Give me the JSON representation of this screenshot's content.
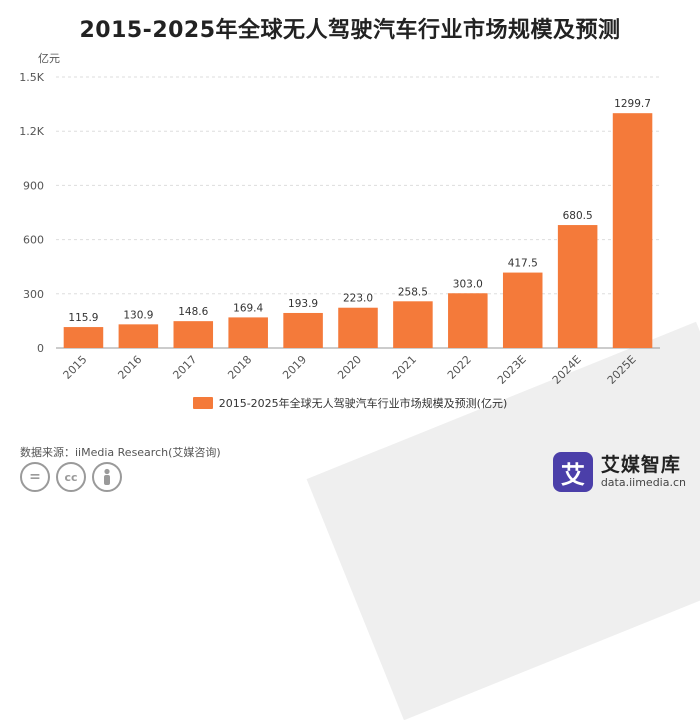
{
  "header": {
    "title": "2015-2025年全球无人驾驶汽车行业市场规模及预测"
  },
  "chart_data": {
    "type": "bar",
    "title": "2015-2025年全球无人驾驶汽车行业市场规模及预测",
    "unit_label": "亿元",
    "categories": [
      "2015",
      "2016",
      "2017",
      "2018",
      "2019",
      "2020",
      "2021",
      "2022",
      "2023E",
      "2024E",
      "2025E"
    ],
    "series": [
      {
        "name": "2015-2025年全球无人驾驶汽车行业市场规模及预测(亿元)",
        "values": [
          115.9,
          130.9,
          148.6,
          169.4,
          193.9,
          223.0,
          258.5,
          303.0,
          417.5,
          680.5,
          1299.7
        ],
        "value_labels": [
          "115.9",
          "130.9",
          "148.6",
          "169.4",
          "193.9",
          "223.0",
          "258.5",
          "303.0",
          "417.5",
          "680.5",
          "1299.7"
        ]
      }
    ],
    "y_ticks": [
      0,
      300,
      600,
      900,
      1200,
      1500
    ],
    "y_tick_labels": [
      "0",
      "300",
      "600",
      "900",
      "1.2K",
      "1.5K"
    ],
    "ylim": [
      0,
      1500
    ],
    "grid": true,
    "legend_position": "bottom",
    "bar_color": "#f47a3a"
  },
  "footer": {
    "source": "数据来源：iiMedia Research(艾媒咨询)",
    "license_icons": [
      "equals-icon",
      "cc-icon",
      "person-icon"
    ],
    "brand_logo_char": "艾",
    "brand_name": "艾媒智库",
    "brand_url": "data.iimedia.cn"
  }
}
